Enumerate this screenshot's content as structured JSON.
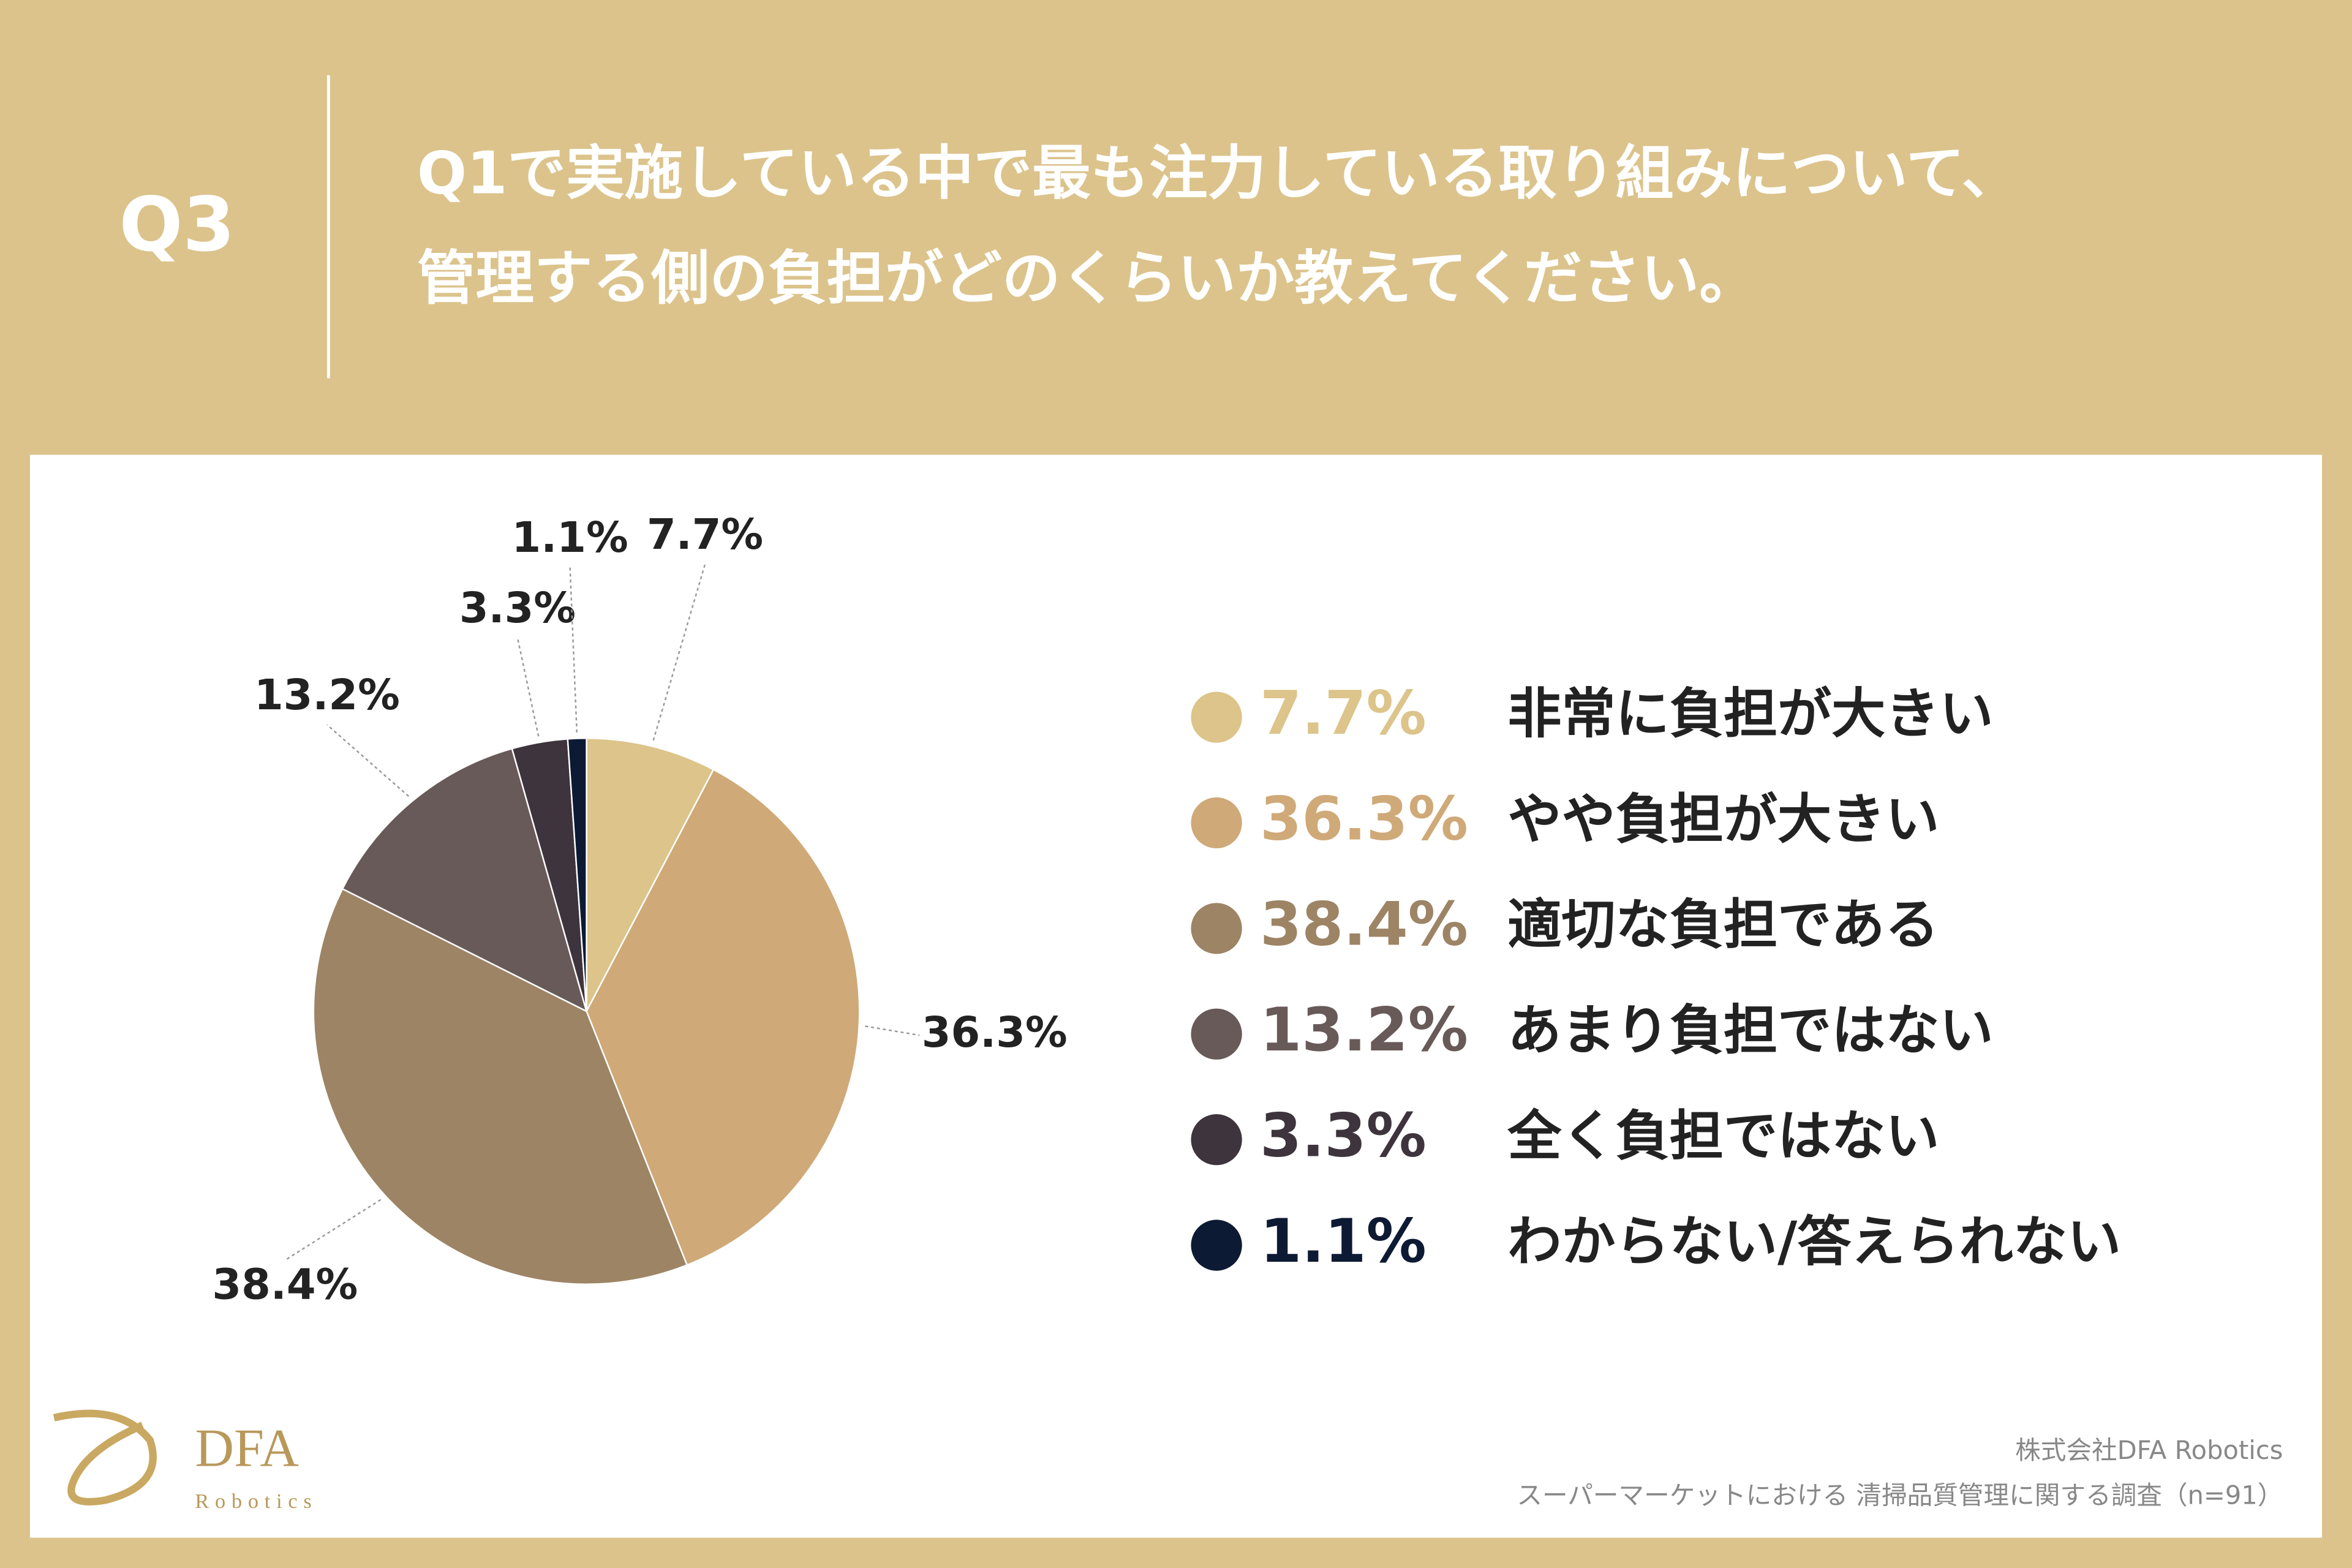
{
  "header": {
    "label": "Q3",
    "title": [
      "Q1で実施している中で最も注力している取り組みについて、",
      "管理する側の負担がどのくらいか教えてください。"
    ]
  },
  "chart_data": {
    "type": "pie",
    "categories": [
      "非常に負担が大きい",
      "やや負担が大きい",
      "適切な負担である",
      "あまり負担ではない",
      "全く負担ではない",
      "わからない/答えられない"
    ],
    "values": [
      7.7,
      36.3,
      38.4,
      13.2,
      3.3,
      1.1
    ],
    "value_labels": [
      "7.7%",
      "36.3%",
      "38.4%",
      "13.2%",
      "3.3%",
      "1.1%"
    ],
    "colors": [
      "#dcc48a",
      "#cfa978",
      "#9c8465",
      "#685a58",
      "#3e343d",
      "#0d1a33"
    ]
  },
  "footer": {
    "company": "株式会社DFA Robotics",
    "survey": "スーパーマーケットにおける 清掃品質管理に関する調査（n=91）"
  },
  "logo": {
    "name": "DFA",
    "sub": "Robotics"
  }
}
